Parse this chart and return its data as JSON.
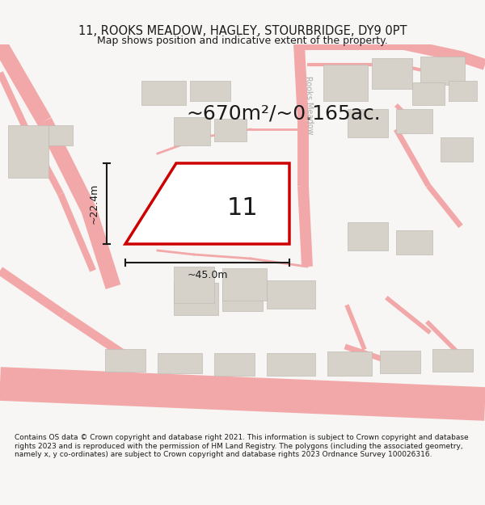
{
  "title_line1": "11, ROOKS MEADOW, HAGLEY, STOURBRIDGE, DY9 0PT",
  "title_line2": "Map shows position and indicative extent of the property.",
  "footer_text": "Contains OS data © Crown copyright and database right 2021. This information is subject to Crown copyright and database rights 2023 and is reproduced with the permission of HM Land Registry. The polygons (including the associated geometry, namely x, y co-ordinates) are subject to Crown copyright and database rights 2023 Ordnance Survey 100026316.",
  "area_text": "~670m²/~0.165ac.",
  "label_height": "~22.4m",
  "label_width": "~45.0m",
  "property_number": "11",
  "bg_color": "#f7f6f4",
  "map_bg": "#ffffff",
  "road_color": "#f2a8a8",
  "building_color": "#d6d2ca",
  "property_polygon_color": "#cc0000",
  "dim_color": "#1a1a1a",
  "road_label_color": "#aaaaaa",
  "title_fontsize": 10.5,
  "subtitle_fontsize": 9,
  "footer_fontsize": 6.5,
  "area_fontsize": 18,
  "dim_fontsize": 9,
  "number_fontsize": 22
}
